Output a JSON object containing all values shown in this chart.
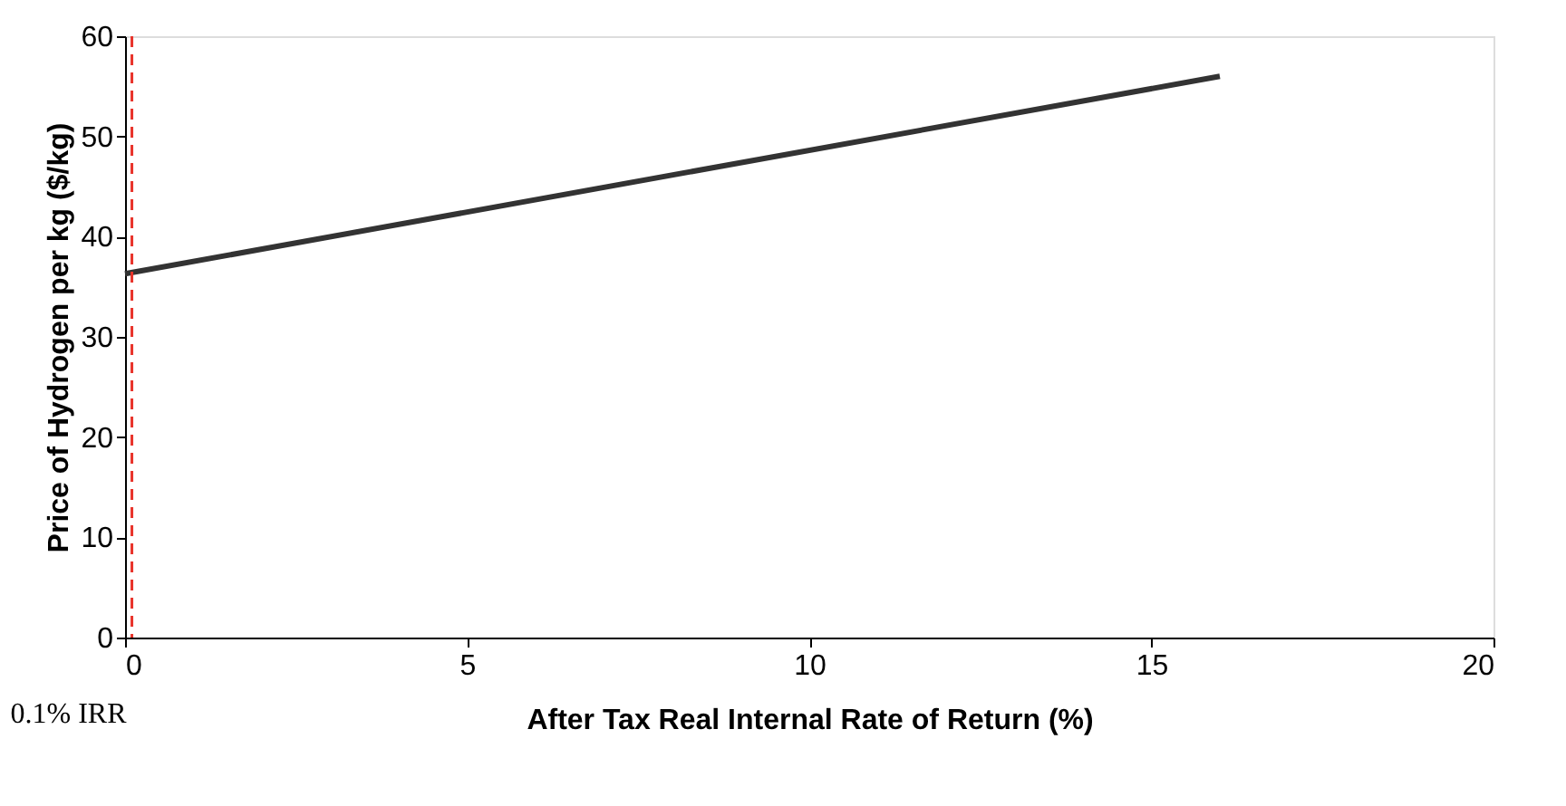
{
  "chart_data": {
    "type": "line",
    "xlabel": "After Tax Real Internal Rate of Return (%)",
    "ylabel": "Price of Hydrogen per kg ($/kg)",
    "x": [
      0,
      16
    ],
    "series": [
      {
        "color": "#333333",
        "values": [
          36.3,
          56
        ]
      }
    ],
    "xlim": [
      0,
      20
    ],
    "xticks": [
      0,
      5,
      10,
      15,
      20
    ],
    "ylim": [
      0,
      60
    ],
    "yticks": [
      0,
      10,
      20,
      30,
      40,
      50,
      60
    ],
    "ref_lines": [
      {
        "axis": "x",
        "value": 0.1,
        "label": "0.1% IRR",
        "color": "#e8332a",
        "line_style": "dashed"
      }
    ],
    "grid": false,
    "marker": "none",
    "line_style": "solid"
  }
}
